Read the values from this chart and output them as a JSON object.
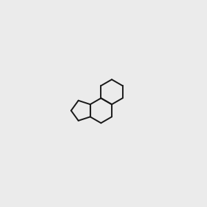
{
  "bg": "#ebebeb",
  "bc": "#1a1a1a",
  "oc": "#ff0000",
  "clc": "#2db82d",
  "lw": 1.5,
  "dbo": 0.012,
  "fs": 7.5,
  "fs_small": 6.5
}
